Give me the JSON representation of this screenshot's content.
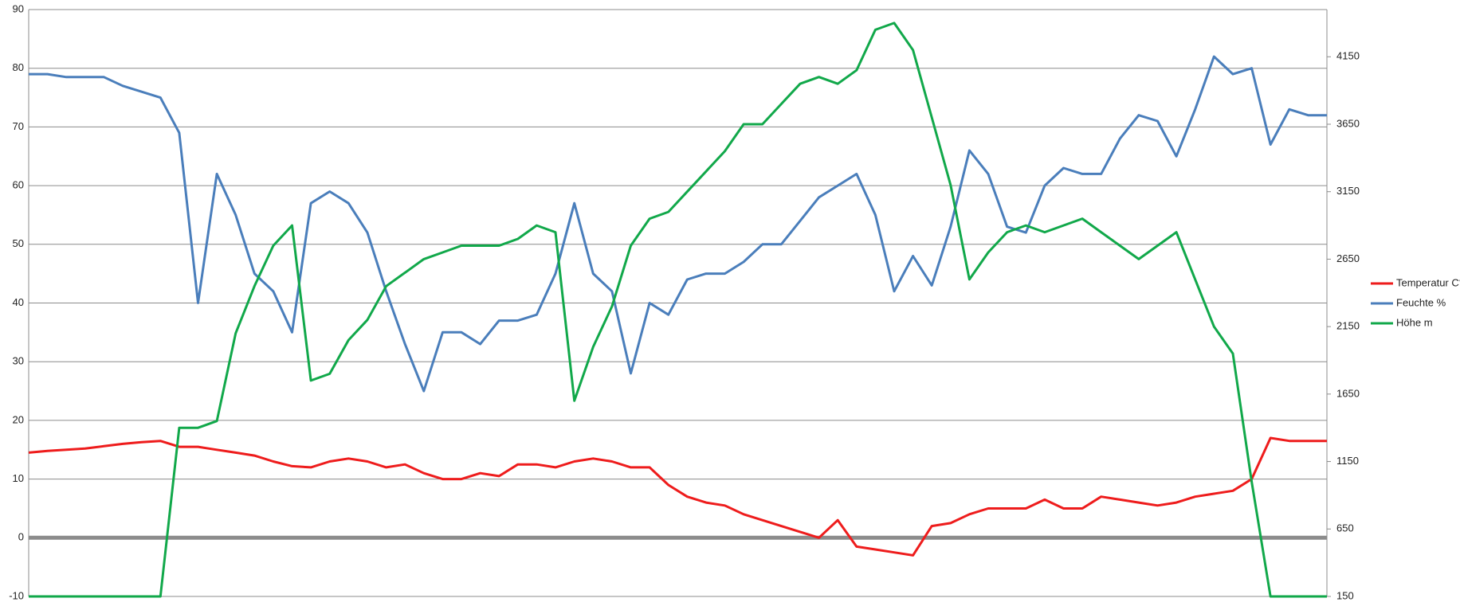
{
  "chart_data": {
    "type": "line",
    "ylim": [
      -10,
      90
    ],
    "yticks": [
      -10,
      0,
      10,
      20,
      30,
      40,
      50,
      60,
      70,
      80,
      90
    ],
    "y2lim": [
      150,
      4500
    ],
    "y2ticks": [
      150,
      650,
      1150,
      1650,
      2150,
      2650,
      3150,
      3650,
      4150
    ],
    "grid": true,
    "legend": "right",
    "series": [
      {
        "name": "Temperatur C°",
        "color": "#ee1c1c",
        "values": [
          14.5,
          14.8,
          15,
          15.2,
          15.6,
          16,
          16.3,
          16.5,
          15.5,
          15.5,
          15,
          14.5,
          14,
          13,
          12.2,
          12,
          13,
          13.5,
          13,
          12,
          12.5,
          11,
          10,
          10,
          11,
          10.5,
          12.5,
          12.5,
          12,
          13,
          13.5,
          13,
          12,
          12,
          9,
          7,
          6,
          5.5,
          4,
          3,
          2,
          1,
          0,
          3,
          -1.5,
          -2,
          -2.5,
          -3,
          2,
          2.5,
          4,
          5,
          5,
          5,
          6.5,
          5,
          5,
          7,
          6.5,
          6,
          5.5,
          6,
          7,
          7.5,
          8,
          10,
          17,
          16.5,
          16.5,
          16.5
        ]
      },
      {
        "name": "Feuchte %",
        "color": "#4a7ebb",
        "values": [
          79,
          79,
          78.5,
          78.5,
          78.5,
          77,
          76,
          75,
          69,
          40,
          62,
          55,
          45,
          42,
          35,
          57,
          59,
          57,
          52,
          42,
          33,
          25,
          35,
          35,
          33,
          37,
          37,
          38,
          45,
          57,
          45,
          42,
          28,
          40,
          38,
          44,
          45,
          45,
          47,
          50,
          50,
          54,
          58,
          60,
          62,
          55,
          42,
          48,
          43,
          53,
          66,
          62,
          53,
          52,
          60,
          63,
          62,
          62,
          68,
          72,
          71,
          65,
          73,
          82,
          79,
          80,
          67,
          73,
          72,
          72
        ]
      },
      {
        "name": "Höhe m",
        "color": "#11a84a",
        "axis": "y2",
        "values": [
          150,
          150,
          150,
          150,
          150,
          150,
          150,
          150,
          1400,
          1400,
          1450,
          2100,
          2450,
          2750,
          2900,
          1750,
          1800,
          2050,
          2200,
          2450,
          2550,
          2650,
          2700,
          2750,
          2750,
          2750,
          2800,
          2900,
          2850,
          1600,
          2000,
          2300,
          2750,
          2950,
          3000,
          3150,
          3300,
          3450,
          3650,
          3650,
          3800,
          3950,
          4000,
          3950,
          4050,
          4350,
          4400,
          4200,
          3700,
          3200,
          2500,
          2700,
          2850,
          2900,
          2850,
          2900,
          2950,
          2850,
          2750,
          2650,
          2750,
          2850,
          2500,
          2150,
          1950,
          1000,
          150,
          150,
          150,
          150
        ]
      }
    ]
  }
}
